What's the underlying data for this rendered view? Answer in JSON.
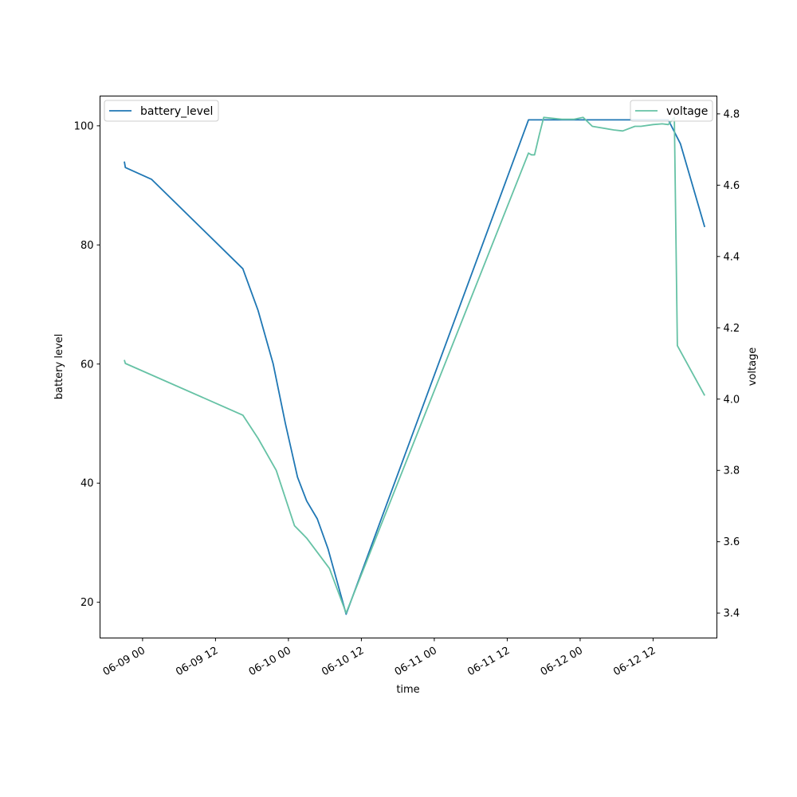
{
  "chart_data": {
    "type": "line",
    "title": "",
    "xlabel": "time",
    "ylabel_left": "battery level",
    "ylabel_right": "voltage",
    "x_ticks": [
      "06-09 00",
      "06-09 12",
      "06-10 00",
      "06-10 12",
      "06-11 00",
      "06-11 12",
      "06-12 00",
      "06-12 12"
    ],
    "y_left_ticks": [
      "20",
      "40",
      "60",
      "80",
      "100"
    ],
    "y_right_ticks": [
      "3.4",
      "3.6",
      "3.8",
      "4.0",
      "4.2",
      "4.4",
      "4.6",
      "4.8"
    ],
    "y_left_lim": [
      14,
      105
    ],
    "y_right_lim": [
      3.33,
      4.85
    ],
    "x_range": [
      "2024-06-08 17:00",
      "2024-06-12 22:30"
    ],
    "grid": false,
    "series": [
      {
        "name": "battery_level",
        "axis": "left",
        "color": "#1f77b4",
        "legend_position": "top-left",
        "points": [
          [
            "2024-06-08 21:00",
            94
          ],
          [
            "2024-06-08 21:10",
            93
          ],
          [
            "2024-06-09 01:30",
            91
          ],
          [
            "2024-06-09 16:30",
            76
          ],
          [
            "2024-06-09 19:00",
            69
          ],
          [
            "2024-06-09 21:30",
            60
          ],
          [
            "2024-06-09 23:30",
            50
          ],
          [
            "2024-06-10 01:30",
            41
          ],
          [
            "2024-06-10 03:00",
            37
          ],
          [
            "2024-06-10 04:45",
            34
          ],
          [
            "2024-06-10 06:30",
            29
          ],
          [
            "2024-06-10 09:30",
            18
          ],
          [
            "2024-06-11 15:30",
            101
          ],
          [
            "2024-06-11 20:30",
            101
          ],
          [
            "2024-06-12 00:00",
            101
          ],
          [
            "2024-06-12 14:30",
            101
          ],
          [
            "2024-06-12 16:30",
            97
          ],
          [
            "2024-06-12 20:30",
            83
          ]
        ]
      },
      {
        "name": "voltage",
        "axis": "right",
        "color": "#66c2a5",
        "legend_position": "top-right",
        "points": [
          [
            "2024-06-08 21:00",
            4.11
          ],
          [
            "2024-06-08 21:10",
            4.1
          ],
          [
            "2024-06-09 16:30",
            3.955
          ],
          [
            "2024-06-09 19:00",
            3.89
          ],
          [
            "2024-06-09 22:00",
            3.8
          ],
          [
            "2024-06-10 01:00",
            3.645
          ],
          [
            "2024-06-10 03:00",
            3.61
          ],
          [
            "2024-06-10 05:00",
            3.565
          ],
          [
            "2024-06-10 06:45",
            3.525
          ],
          [
            "2024-06-10 09:30",
            3.4
          ],
          [
            "2024-06-11 15:30",
            4.69
          ],
          [
            "2024-06-11 16:00",
            4.685
          ],
          [
            "2024-06-11 16:30",
            4.685
          ],
          [
            "2024-06-11 17:15",
            4.74
          ],
          [
            "2024-06-11 18:00",
            4.79
          ],
          [
            "2024-06-11 21:00",
            4.785
          ],
          [
            "2024-06-11 23:00",
            4.785
          ],
          [
            "2024-06-12 00:30",
            4.79
          ],
          [
            "2024-06-12 02:00",
            4.765
          ],
          [
            "2024-06-12 05:30",
            4.755
          ],
          [
            "2024-06-12 07:00",
            4.752
          ],
          [
            "2024-06-12 09:00",
            4.765
          ],
          [
            "2024-06-12 10:00",
            4.765
          ],
          [
            "2024-06-12 12:00",
            4.77
          ],
          [
            "2024-06-12 13:30",
            4.772
          ],
          [
            "2024-06-12 14:30",
            4.77
          ],
          [
            "2024-06-12 15:30",
            4.79
          ],
          [
            "2024-06-12 16:00",
            4.15
          ],
          [
            "2024-06-12 20:30",
            4.01
          ]
        ]
      }
    ]
  }
}
